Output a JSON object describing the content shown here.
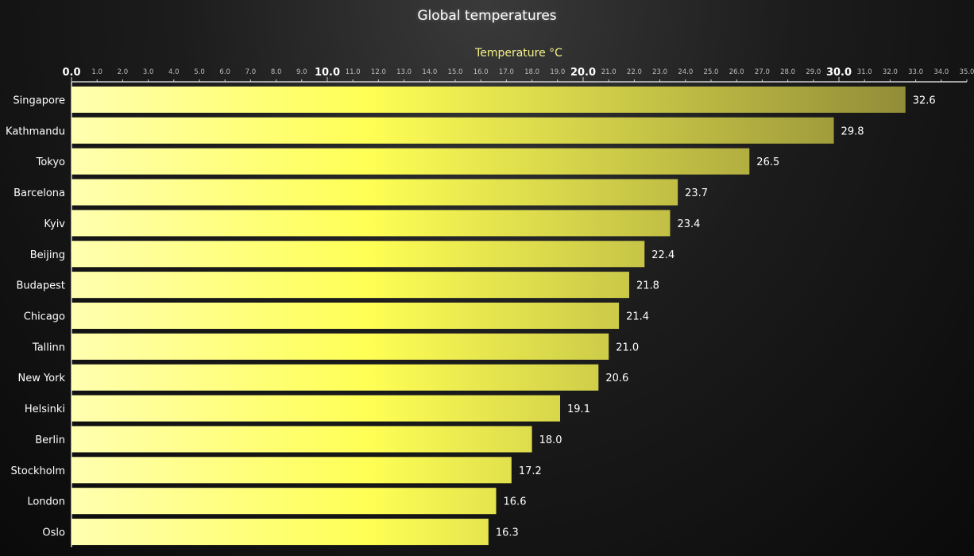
{
  "chart_data": {
    "type": "bar",
    "orientation": "horizontal",
    "title": "Global temperatures",
    "xlabel": "Temperature °C",
    "xlim": [
      0,
      35
    ],
    "xaxis_position": "top",
    "major_tick_step": 10,
    "minor_tick_step": 1,
    "categories": [
      "Singapore",
      "Kathmandu",
      "Tokyo",
      "Barcelona",
      "Kyiv",
      "Beijing",
      "Budapest",
      "Chicago",
      "Tallinn",
      "New York",
      "Helsinki",
      "Berlin",
      "Stockholm",
      "London",
      "Oslo"
    ],
    "values": [
      32.6,
      29.8,
      26.5,
      23.7,
      23.4,
      22.4,
      21.8,
      21.4,
      21.0,
      20.6,
      19.1,
      18.0,
      17.2,
      16.6,
      16.3
    ],
    "value_labels": [
      "32.6",
      "29.8",
      "26.5",
      "23.7",
      "23.4",
      "22.4",
      "21.8",
      "21.4",
      "21.0",
      "20.6",
      "19.1",
      "18.0",
      "17.2",
      "16.6",
      "16.3"
    ],
    "legend": "none",
    "grid": false,
    "colors": {
      "bar_start": "#ffffb0",
      "bar_mid": "#ffff55",
      "bar_end": "#858035",
      "axis": "#d0d0d0",
      "axis_title": "#f5f18a"
    }
  }
}
